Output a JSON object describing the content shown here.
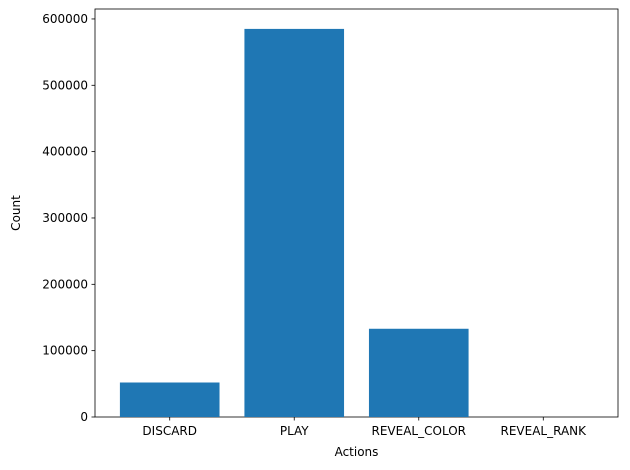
{
  "chart_data": {
    "type": "bar",
    "title": "",
    "xlabel": "Actions",
    "ylabel": "Count",
    "categories": [
      "DISCARD",
      "PLAY",
      "REVEAL_COLOR",
      "REVEAL_RANK"
    ],
    "values": [
      52000,
      585000,
      133000,
      0
    ],
    "ylim": [
      0,
      615000
    ],
    "yticks": [
      0,
      100000,
      200000,
      300000,
      400000,
      500000,
      600000
    ],
    "ytick_labels": [
      "0",
      "100000",
      "200000",
      "300000",
      "400000",
      "500000",
      "600000"
    ],
    "bar_color": "#1f77b4",
    "grid": false,
    "legend": "none"
  }
}
